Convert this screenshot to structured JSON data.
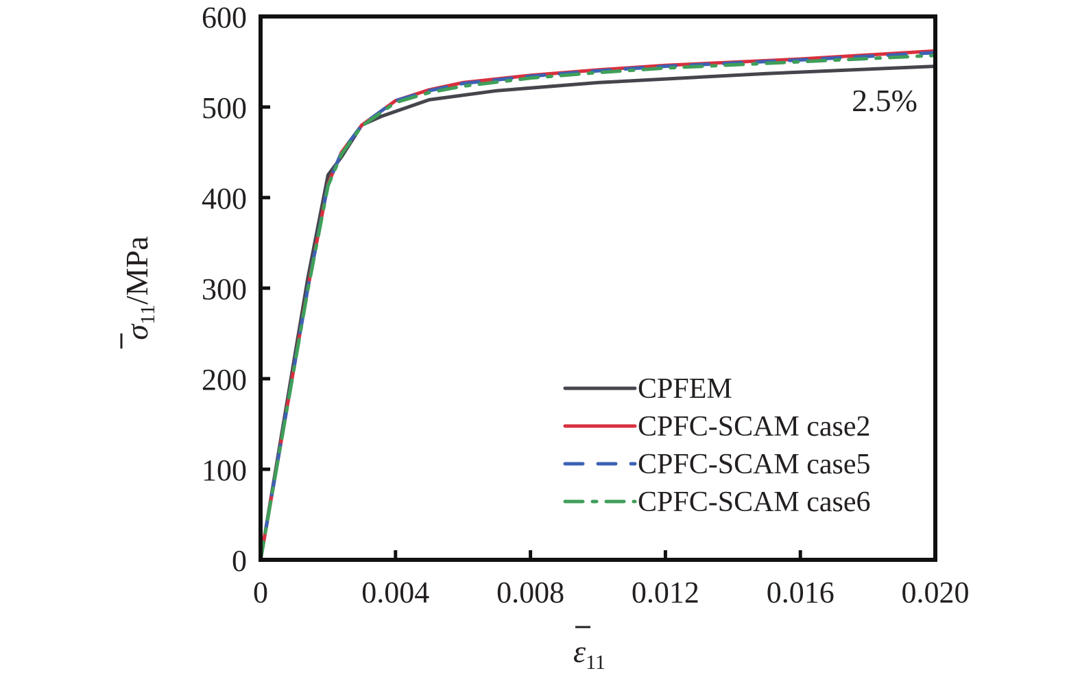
{
  "chart_data": {
    "type": "line",
    "title": "",
    "xlabel": {
      "symbol": "ε",
      "subscript": "11",
      "overbar": true
    },
    "ylabel": {
      "symbol": "σ",
      "subscript": "11",
      "unit": "/MPa",
      "overbar": true
    },
    "xlim": [
      0,
      0.02
    ],
    "ylim": [
      0,
      600
    ],
    "xticks": [
      0,
      0.004,
      0.008,
      0.012,
      0.016,
      0.02
    ],
    "xtick_labels": [
      "0",
      "0.004",
      "0.008",
      "0.012",
      "0.016",
      "0.020"
    ],
    "yticks": [
      0,
      100,
      200,
      300,
      400,
      500,
      600
    ],
    "ytick_labels": [
      "0",
      "100",
      "200",
      "300",
      "400",
      "500",
      "600"
    ],
    "grid": false,
    "legend_position": "bottom-right",
    "annotation": "2.5%",
    "series": [
      {
        "name": "CPFEM",
        "color": "#45454d",
        "dash": "solid",
        "x": [
          0,
          0.0014,
          0.002,
          0.0024,
          0.003,
          0.0036,
          0.005,
          0.007,
          0.01,
          0.015,
          0.02
        ],
        "y": [
          0,
          311,
          425,
          445,
          480,
          490,
          508,
          518,
          527,
          537,
          545
        ]
      },
      {
        "name": "CPFC-SCAM case2",
        "color": "#d8303f",
        "dash": "solid",
        "x": [
          0,
          0.0014,
          0.002,
          0.0024,
          0.003,
          0.004,
          0.005,
          0.006,
          0.008,
          0.01,
          0.012,
          0.016,
          0.02
        ],
        "y": [
          0,
          300,
          415,
          450,
          480,
          507,
          519,
          527,
          535,
          541,
          546,
          553,
          562
        ]
      },
      {
        "name": "CPFC-SCAM case5",
        "color": "#3c62b4",
        "dash": "dashed",
        "x": [
          0,
          0.0014,
          0.002,
          0.0024,
          0.003,
          0.004,
          0.005,
          0.006,
          0.008,
          0.01,
          0.012,
          0.016,
          0.02
        ],
        "y": [
          0,
          300,
          415,
          450,
          480,
          507,
          518,
          526,
          534,
          540,
          545,
          552,
          560
        ]
      },
      {
        "name": "CPFC-SCAM case6",
        "color": "#3f9f5a",
        "dash": "dash-dot",
        "x": [
          0,
          0.0014,
          0.002,
          0.0024,
          0.003,
          0.004,
          0.005,
          0.006,
          0.008,
          0.01,
          0.012,
          0.016,
          0.02
        ],
        "y": [
          0,
          298,
          413,
          448,
          479,
          505,
          516,
          523,
          532,
          538,
          543,
          550,
          557
        ]
      }
    ]
  }
}
